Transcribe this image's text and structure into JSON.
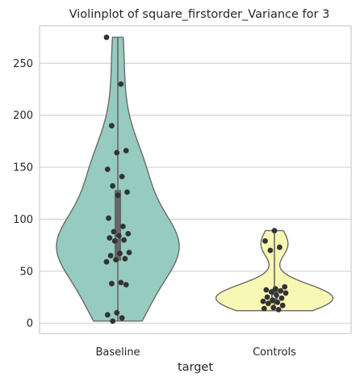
{
  "chart_data": {
    "type": "violin",
    "title": "Violinplot of square_firstorder_Variance for 3",
    "xlabel": "target",
    "ylabel": "",
    "categories": [
      "Baseline",
      "Controls"
    ],
    "ylim": [
      -10,
      286
    ],
    "yticks": [
      0,
      50,
      100,
      150,
      200,
      250
    ],
    "grid": true,
    "legend": "none",
    "colors": {
      "Baseline": "#96cbc0",
      "Controls": "#f9f7b4",
      "outline": "#6a6a6a",
      "points": "#333333",
      "box": "#666666"
    },
    "series": [
      {
        "category": "Baseline",
        "range": [
          2,
          275
        ],
        "quartiles": [
          60,
          128
        ],
        "median": 83,
        "points": [
          275,
          230,
          190,
          166,
          164,
          148,
          141,
          132,
          126,
          123,
          101,
          93,
          88,
          86,
          84,
          82,
          80,
          79,
          68,
          67,
          65,
          62,
          61,
          59,
          39,
          38,
          37,
          10,
          8,
          5,
          2
        ]
      },
      {
        "category": "Controls",
        "range": [
          12,
          89
        ],
        "quartiles": [
          19,
          33
        ],
        "median": 26,
        "points": [
          89,
          79,
          73,
          70,
          35,
          33,
          32,
          31,
          30,
          29,
          27,
          25,
          24,
          22,
          21,
          20,
          19,
          17,
          15,
          14,
          13
        ]
      }
    ]
  }
}
